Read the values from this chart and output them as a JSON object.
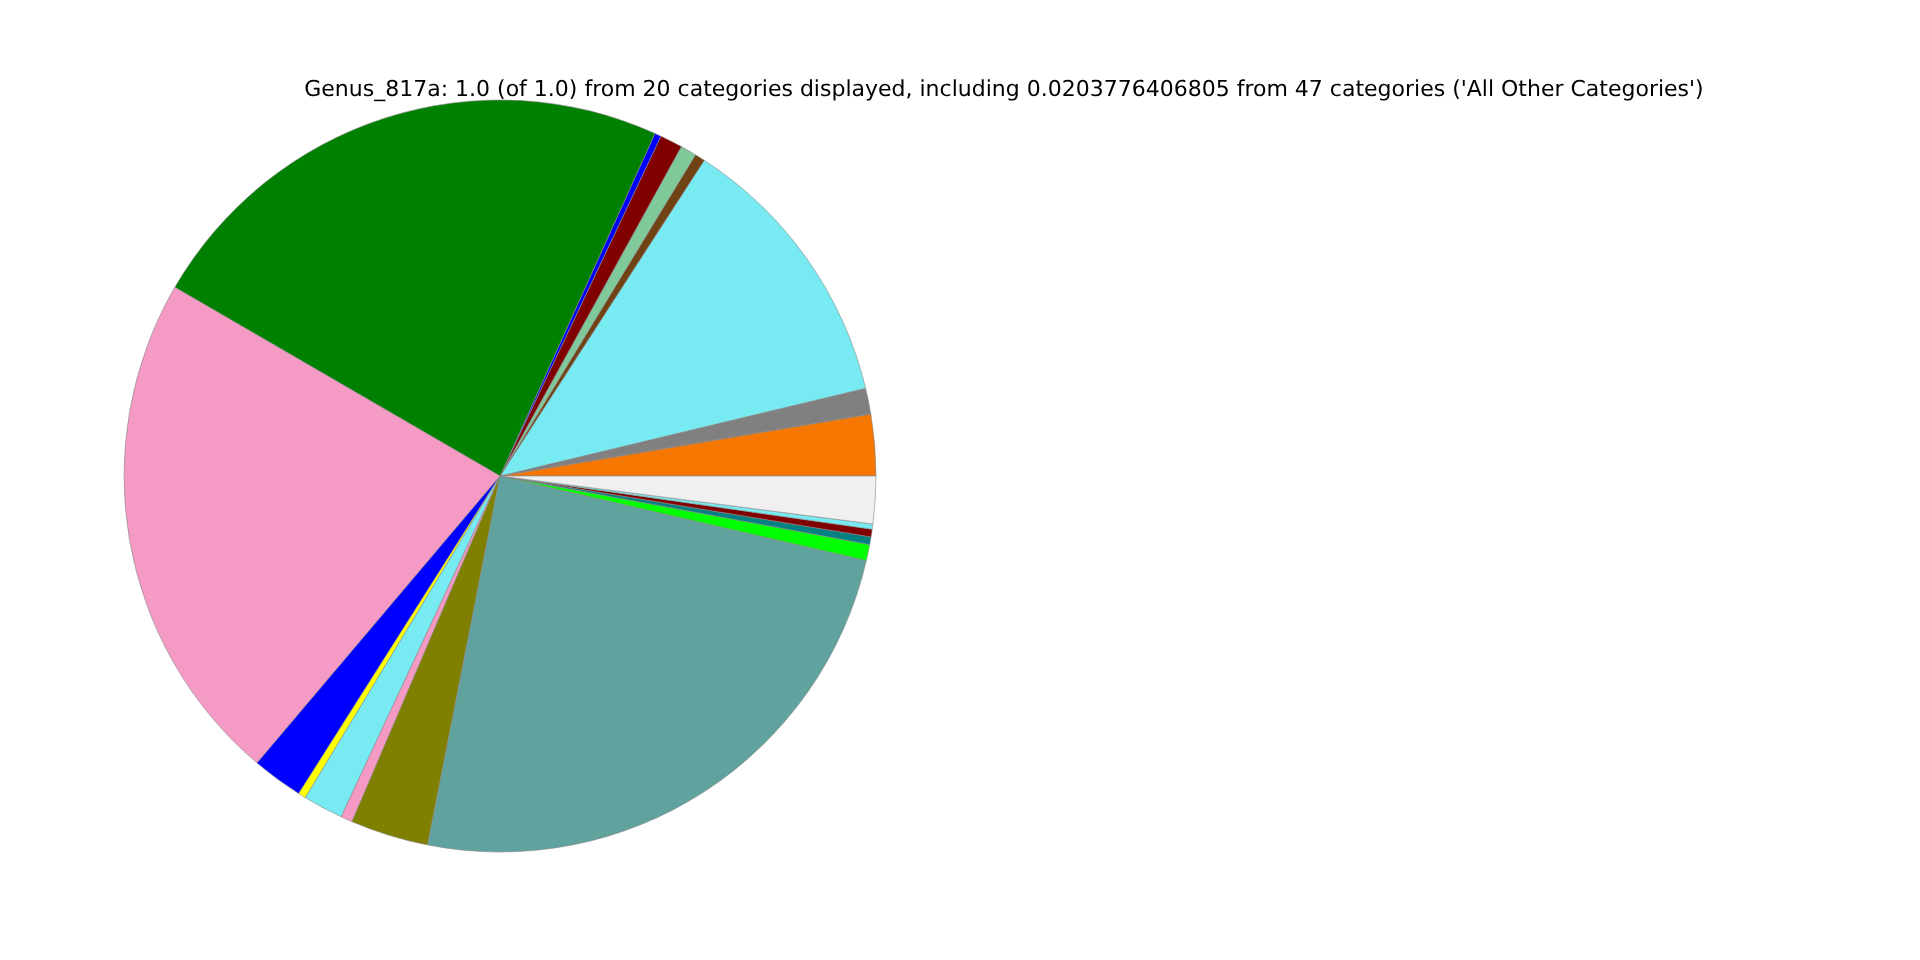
{
  "chart_data": {
    "type": "pie",
    "title": "Genus_817a: 1.0 (of 1.0) from 20 categories displayed, including 0.0203776406805 from 47 categories ('All Other Categories')",
    "categories": [
      null,
      null,
      null,
      null,
      null,
      null,
      null,
      null,
      null,
      null,
      null,
      null,
      null,
      null,
      null,
      null,
      null,
      null,
      null,
      null
    ],
    "values": [
      2.64,
      1.11,
      12.11,
      0.44,
      0.69,
      0.97,
      0.28,
      23.39,
      22.19,
      2.19,
      0.33,
      1.72,
      0.5,
      3.36,
      24.47,
      0.69,
      0.33,
      0.33,
      0.22,
      2.04
    ],
    "colors": [
      "#f57600",
      "#808080",
      "#78ebf2",
      "#704214",
      "#80c99b",
      "#800000",
      "#0000ff",
      "#008000",
      "#f49ac4",
      "#0000ff",
      "#ffff00",
      "#78ebf2",
      "#f49ac4",
      "#808000",
      "#5fa29e",
      "#00ff00",
      "#008080",
      "#800000",
      "#78ebf2",
      "#f0f0f0"
    ],
    "legend": false
  }
}
